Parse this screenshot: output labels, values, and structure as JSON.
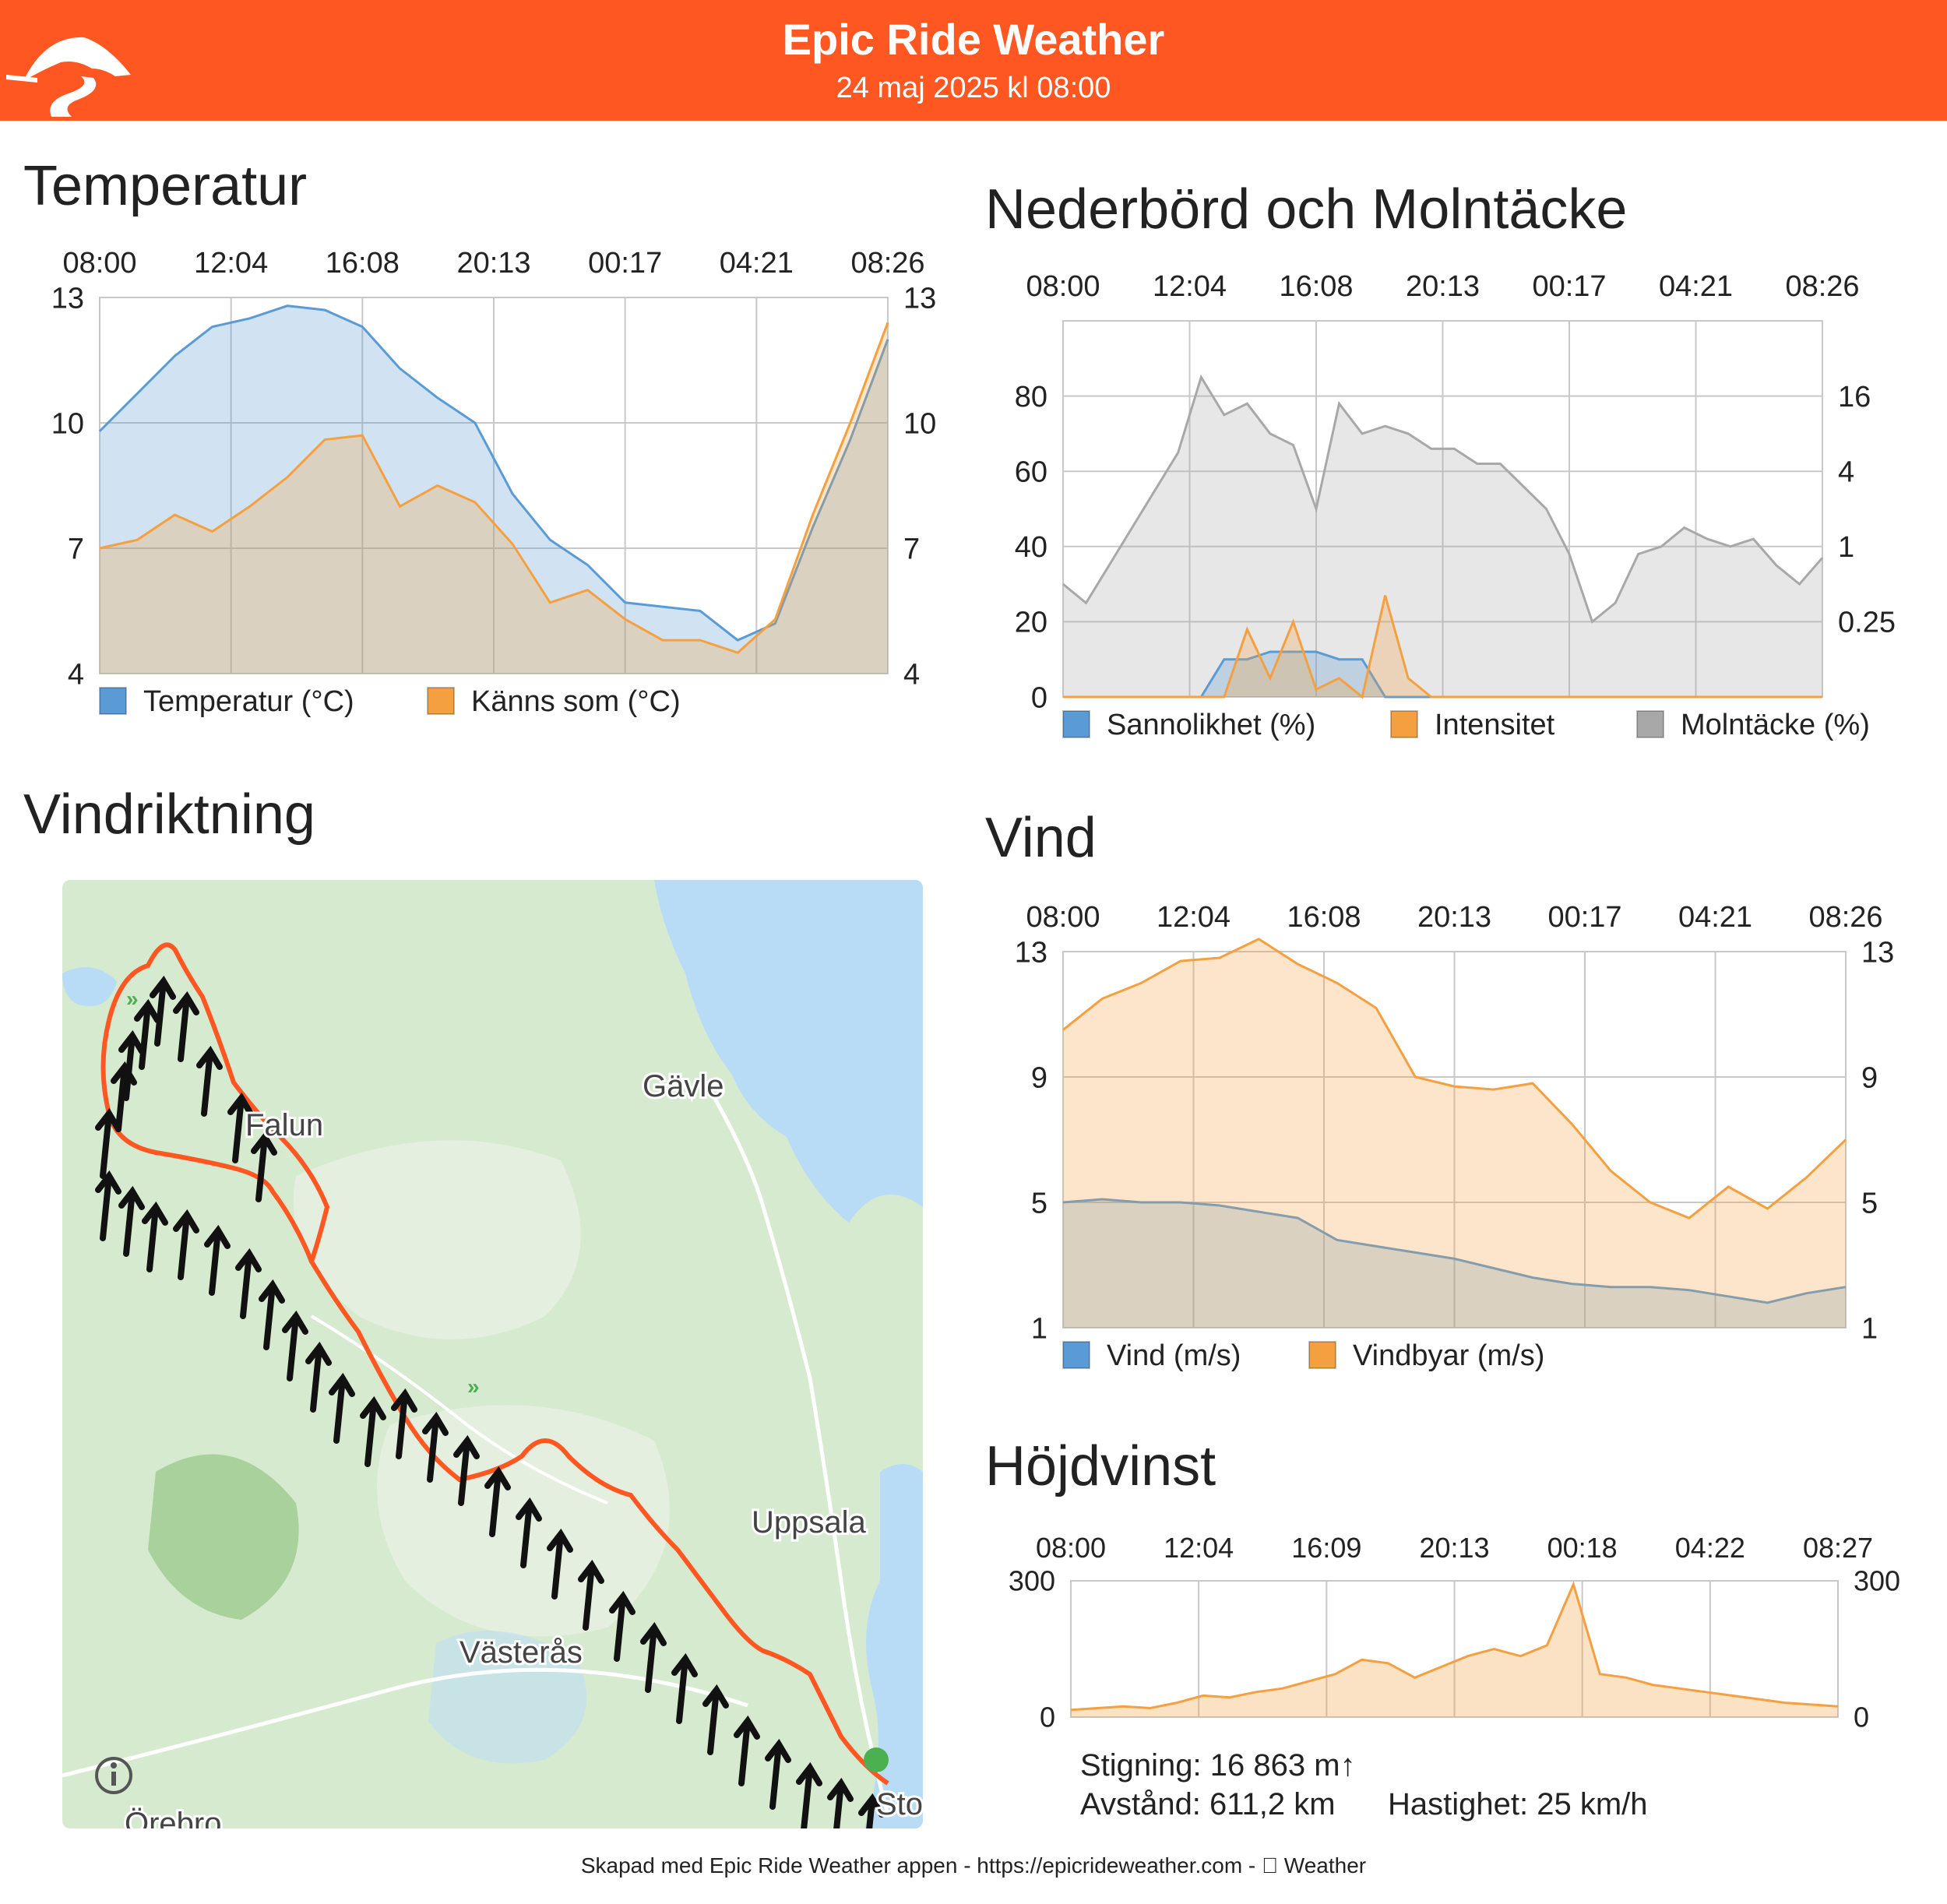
{
  "header": {
    "title": "Epic Ride Weather",
    "date": "24 maj 2025 kl 08:00",
    "brand_color": "#ff5722"
  },
  "colors": {
    "blue": "#5b9bd5",
    "orange": "#f5a040",
    "gray": "#a8a8a8",
    "route": "#ff5722"
  },
  "sections": {
    "temperature": "Temperatur",
    "precip": "Nederbörd och Molntäcke",
    "wind_direction": "Vindriktning",
    "wind": "Vind",
    "elevation": "Höjdvinst"
  },
  "chart_data": [
    {
      "id": "temp",
      "type": "area",
      "x_labels": [
        "08:00",
        "12:04",
        "16:08",
        "20:13",
        "00:17",
        "04:21",
        "08:26"
      ],
      "left_ticks": [
        "13",
        "10",
        "7",
        "4"
      ],
      "right_ticks": [
        "13",
        "10",
        "7",
        "4"
      ],
      "ylim": [
        4,
        13
      ],
      "grid": true,
      "legend": "bottom",
      "series": [
        {
          "name": "Temperatur (°C)",
          "color": "#5b9bd5",
          "values": [
            9.8,
            10.7,
            11.6,
            12.3,
            12.5,
            12.8,
            12.7,
            12.3,
            11.3,
            10.6,
            10.0,
            8.3,
            7.2,
            6.6,
            5.7,
            5.6,
            5.5,
            4.8,
            5.2,
            7.5,
            9.6,
            12.0
          ]
        },
        {
          "name": "Känns som (°C)",
          "color": "#f5a040",
          "values": [
            7.0,
            7.2,
            7.8,
            7.4,
            8.0,
            8.7,
            9.6,
            9.7,
            8.0,
            8.5,
            8.1,
            7.1,
            5.7,
            6.0,
            5.3,
            4.8,
            4.8,
            4.5,
            5.3,
            7.8,
            10.0,
            12.4
          ]
        }
      ]
    },
    {
      "id": "precip",
      "type": "area",
      "x_labels": [
        "08:00",
        "12:04",
        "16:08",
        "20:13",
        "00:17",
        "04:21",
        "08:26"
      ],
      "left_ticks": [
        "80",
        "60",
        "40",
        "20",
        "0"
      ],
      "right_ticks": [
        "16",
        "4",
        "1",
        "0.25"
      ],
      "ylim": [
        0,
        100
      ],
      "grid": true,
      "legend": "bottom",
      "series": [
        {
          "name": "Sannolikhet (%)",
          "color": "#5b9bd5",
          "values": [
            0,
            0,
            0,
            0,
            0,
            0,
            0,
            10,
            10,
            12,
            12,
            12,
            10,
            10,
            0,
            0,
            0,
            0,
            0,
            0,
            0,
            0,
            0,
            0,
            0,
            0,
            0,
            0,
            0,
            0,
            0,
            0,
            0,
            0
          ]
        },
        {
          "name": "Intensitet",
          "color": "#f5a040",
          "values": [
            0,
            0,
            0,
            0,
            0,
            0,
            0,
            0,
            18,
            5,
            20,
            2,
            5,
            0,
            27,
            5,
            0,
            0,
            0,
            0,
            0,
            0,
            0,
            0,
            0,
            0,
            0,
            0,
            0,
            0,
            0,
            0,
            0,
            0
          ]
        },
        {
          "name": "Molntäcke (%)",
          "color": "#a8a8a8",
          "values": [
            30,
            25,
            35,
            45,
            55,
            65,
            85,
            75,
            78,
            70,
            67,
            50,
            78,
            70,
            72,
            70,
            66,
            66,
            62,
            62,
            56,
            50,
            38,
            20,
            25,
            38,
            40,
            45,
            42,
            40,
            42,
            35,
            30,
            37
          ]
        }
      ]
    },
    {
      "id": "wind",
      "type": "area",
      "x_labels": [
        "08:00",
        "12:04",
        "16:08",
        "20:13",
        "00:17",
        "04:21",
        "08:26"
      ],
      "left_ticks": [
        "13",
        "9",
        "5",
        "1"
      ],
      "right_ticks": [
        "13",
        "9",
        "5",
        "1"
      ],
      "ylim": [
        1,
        13
      ],
      "grid": true,
      "legend": "bottom",
      "series": [
        {
          "name": "Vind (m/s)",
          "color": "#5b9bd5",
          "values": [
            5.0,
            5.1,
            5.0,
            5.0,
            4.9,
            4.7,
            4.5,
            3.8,
            3.6,
            3.4,
            3.2,
            2.9,
            2.6,
            2.4,
            2.3,
            2.3,
            2.2,
            2.0,
            1.8,
            2.1,
            2.3
          ]
        },
        {
          "name": "Vindbyar (m/s)",
          "color": "#f5a040",
          "values": [
            10.5,
            11.5,
            12.0,
            12.7,
            12.8,
            13.4,
            12.6,
            12.0,
            11.2,
            9.0,
            8.7,
            8.6,
            8.8,
            7.5,
            6.0,
            5.0,
            4.5,
            5.5,
            4.8,
            5.8,
            7.0
          ]
        }
      ]
    },
    {
      "id": "elevation",
      "type": "area",
      "x_labels": [
        "08:00",
        "12:04",
        "16:09",
        "20:13",
        "00:18",
        "04:22",
        "08:27"
      ],
      "left_ticks": [
        "300",
        "0"
      ],
      "right_ticks": [
        "300",
        "0"
      ],
      "ylim": [
        0,
        380
      ],
      "grid": true,
      "legend": "none",
      "series": [
        {
          "name": "",
          "color": "#f5a040",
          "values": [
            20,
            25,
            30,
            25,
            40,
            60,
            55,
            70,
            80,
            100,
            120,
            160,
            150,
            110,
            140,
            170,
            190,
            170,
            200,
            370,
            120,
            110,
            90,
            80,
            70,
            60,
            50,
            40,
            35,
            30
          ]
        }
      ]
    }
  ],
  "map": {
    "labels": [
      "Gävle",
      "Falun",
      "Uppsala",
      "Västerås",
      "Örebro",
      "Stock"
    ],
    "info_icon": "info-icon"
  },
  "stats": {
    "climb": "Stigning: 16 863 m↑",
    "distance": "Avstånd: 611,2 km",
    "speed": "Hastighet: 25 km/h"
  },
  "footer": "Skapad med Epic Ride Weather appen - https://epicrideweather.com -  Weather"
}
